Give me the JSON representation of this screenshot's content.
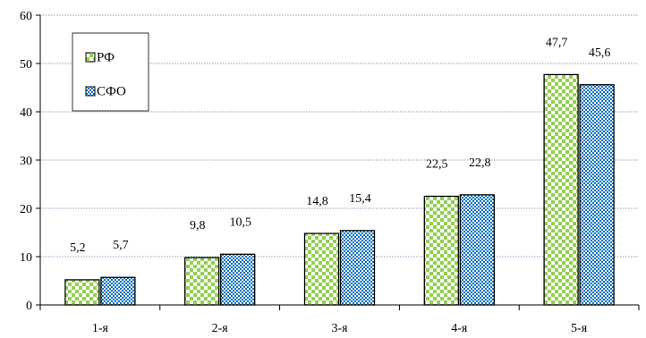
{
  "chart_data": {
    "type": "bar",
    "title": "",
    "xlabel": "",
    "ylabel": "",
    "categories": [
      "1-я",
      "2-я",
      "3-я",
      "4-я",
      "5-я"
    ],
    "series": [
      {
        "name": "РФ",
        "values": [
          5.2,
          9.8,
          14.8,
          22.5,
          47.7
        ],
        "labels": [
          "5,2",
          "9,8",
          "14,8",
          "22,5",
          "47,7"
        ],
        "color": "#92d050"
      },
      {
        "name": "СФО",
        "values": [
          5.7,
          10.5,
          15.4,
          22.8,
          45.6
        ],
        "labels": [
          "5,7",
          "10,5",
          "15,4",
          "22,8",
          "45,6"
        ],
        "color": "#0070c0"
      }
    ],
    "ylim": [
      0,
      60
    ],
    "yticks": [
      0,
      10,
      20,
      30,
      40,
      50,
      60
    ],
    "grid": true,
    "legend_position": "top-left"
  }
}
